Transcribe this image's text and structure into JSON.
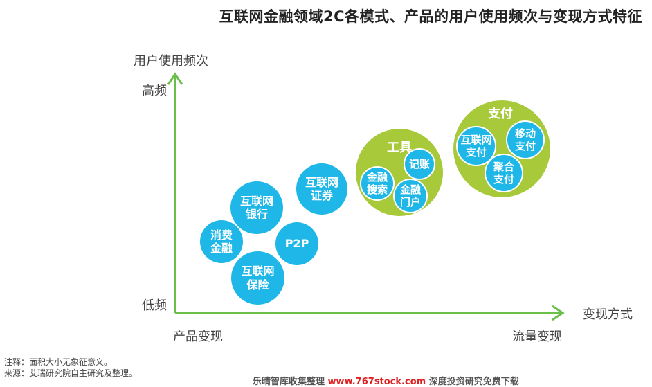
{
  "title": "互联网金融领域2C各模式、产品的用户使用频次与变现方式特征",
  "axes": {
    "y_label": "用户使用频次",
    "y_high": "高频",
    "y_low": "低频",
    "x_label": "变现方式",
    "x_left": "产品变现",
    "x_right": "流量变现",
    "color": "#6abf4b"
  },
  "bubbles": {
    "consumer_finance": "消费\n金融",
    "internet_bank": "互联网\n银行",
    "p2p": "P2P",
    "internet_insurance": "互联网\n保险",
    "internet_securities": "互联网\n证券"
  },
  "tools_group": {
    "label": "工具",
    "finance_search": "金融\n搜索",
    "bookkeeping": "记账",
    "finance_portal": "金融\n门户"
  },
  "payment_group": {
    "label": "支付",
    "internet_payment": "互联网\n支付",
    "mobile_payment": "移动\n支付",
    "aggregate_payment": "聚合\n支付"
  },
  "colors": {
    "blue": "#1fb7e8",
    "green": "#a7c93a"
  },
  "notes": {
    "note": "注释：面积大小无象征意义。",
    "source": "来源：艾瑞研究院自主研究及整理。"
  },
  "footer": {
    "left": "乐晴智库收集整理",
    "middle": "www.767stock.com",
    "right": "深度投资研究免费下载"
  }
}
